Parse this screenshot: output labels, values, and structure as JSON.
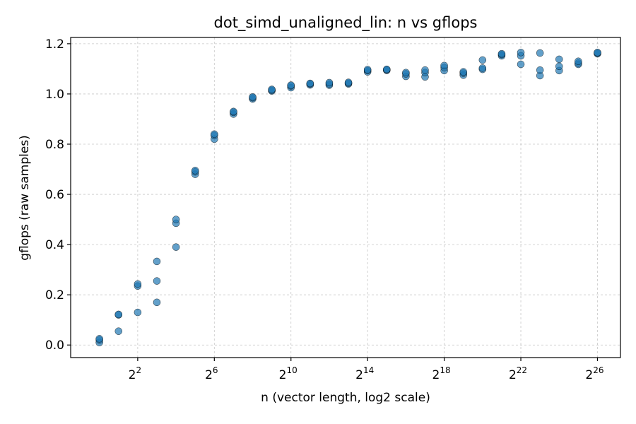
{
  "chart_data": {
    "type": "scatter",
    "title": "dot_simd_unaligned_lin: n vs gflops",
    "xlabel": "n (vector length, log2 scale)",
    "ylabel": "gflops (raw samples)",
    "x_scale": "log2",
    "xlim_log2": [
      -1.5,
      27.2
    ],
    "ylim": [
      -0.05,
      1.225
    ],
    "grid": true,
    "legend": "none",
    "point_color": "#1f77b4",
    "x_ticks_log2": [
      2,
      6,
      10,
      14,
      18,
      22,
      26
    ],
    "x_tick_base": "2",
    "x_tick_exponents": [
      "2",
      "6",
      "10",
      "14",
      "18",
      "22",
      "26"
    ],
    "y_ticks": [
      0.0,
      0.2,
      0.4,
      0.6,
      0.8,
      1.0,
      1.2
    ],
    "y_tick_labels": [
      "0.0",
      "0.2",
      "0.4",
      "0.6",
      "0.8",
      "1.0",
      "1.2"
    ],
    "series": [
      {
        "points": [
          [
            1,
            0.01
          ],
          [
            1,
            0.02
          ],
          [
            1,
            0.025
          ],
          [
            2,
            0.055
          ],
          [
            2,
            0.12
          ],
          [
            2,
            0.122
          ],
          [
            4,
            0.13
          ],
          [
            4,
            0.235
          ],
          [
            4,
            0.243
          ],
          [
            8,
            0.17
          ],
          [
            8,
            0.255
          ],
          [
            8,
            0.333
          ],
          [
            16,
            0.39
          ],
          [
            16,
            0.485
          ],
          [
            16,
            0.5
          ],
          [
            32,
            0.68
          ],
          [
            32,
            0.69
          ],
          [
            32,
            0.695
          ],
          [
            64,
            0.82
          ],
          [
            64,
            0.835
          ],
          [
            64,
            0.84
          ],
          [
            128,
            0.92
          ],
          [
            128,
            0.927
          ],
          [
            128,
            0.93
          ],
          [
            256,
            0.98
          ],
          [
            256,
            0.985
          ],
          [
            256,
            0.988
          ],
          [
            512,
            1.012
          ],
          [
            512,
            1.015
          ],
          [
            512,
            1.018
          ],
          [
            1024,
            1.025
          ],
          [
            1024,
            1.032
          ],
          [
            1024,
            1.035
          ],
          [
            2048,
            1.036
          ],
          [
            2048,
            1.04
          ],
          [
            2048,
            1.042
          ],
          [
            4096,
            1.035
          ],
          [
            4096,
            1.04
          ],
          [
            4096,
            1.045
          ],
          [
            8192,
            1.04
          ],
          [
            8192,
            1.043
          ],
          [
            8192,
            1.046
          ],
          [
            16384,
            1.088
          ],
          [
            16384,
            1.093
          ],
          [
            16384,
            1.097
          ],
          [
            32768,
            1.094
          ],
          [
            32768,
            1.096
          ],
          [
            32768,
            1.098
          ],
          [
            65536,
            1.07
          ],
          [
            65536,
            1.08
          ],
          [
            65536,
            1.085
          ],
          [
            131072,
            1.068
          ],
          [
            131072,
            1.085
          ],
          [
            131072,
            1.095
          ],
          [
            262144,
            1.093
          ],
          [
            262144,
            1.105
          ],
          [
            262144,
            1.113
          ],
          [
            524288,
            1.075
          ],
          [
            524288,
            1.083
          ],
          [
            524288,
            1.088
          ],
          [
            1048576,
            1.098
          ],
          [
            1048576,
            1.103
          ],
          [
            1048576,
            1.135
          ],
          [
            2097152,
            1.152
          ],
          [
            2097152,
            1.157
          ],
          [
            2097152,
            1.16
          ],
          [
            4194304,
            1.118
          ],
          [
            4194304,
            1.152
          ],
          [
            4194304,
            1.165
          ],
          [
            8388608,
            1.073
          ],
          [
            8388608,
            1.095
          ],
          [
            8388608,
            1.163
          ],
          [
            16777216,
            1.093
          ],
          [
            16777216,
            1.11
          ],
          [
            16777216,
            1.138
          ],
          [
            33554432,
            1.118
          ],
          [
            33554432,
            1.123
          ],
          [
            33554432,
            1.13
          ],
          [
            67108864,
            1.16
          ],
          [
            67108864,
            1.163
          ],
          [
            67108864,
            1.165
          ]
        ]
      }
    ]
  }
}
